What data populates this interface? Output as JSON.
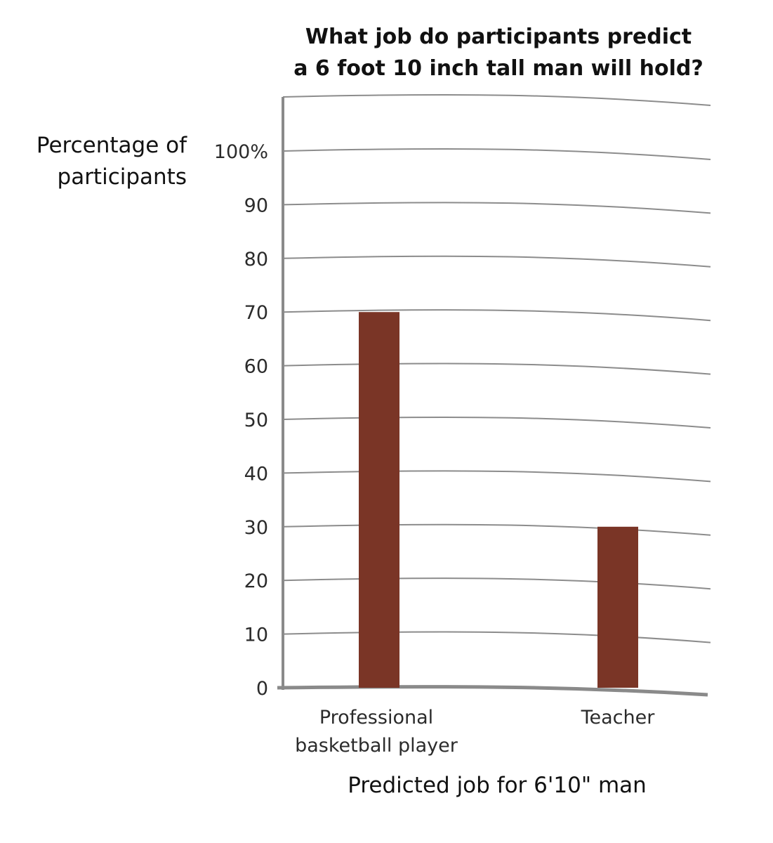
{
  "chart_data": {
    "type": "bar",
    "title": [
      "What job do participants predict",
      "a 6 foot 10 inch tall man will hold?"
    ],
    "ylabel": [
      "Percentage of",
      "participants"
    ],
    "xlabel": "Predicted job for 6'10\" man",
    "categories": [
      [
        "Professional",
        "basketball player"
      ],
      [
        "Teacher"
      ]
    ],
    "values": [
      70,
      30
    ],
    "ylim": [
      0,
      100
    ],
    "yticks": [
      0,
      10,
      20,
      30,
      40,
      50,
      60,
      70,
      80,
      90,
      100
    ],
    "ytick_labels": [
      "0",
      "10",
      "20",
      "30",
      "40",
      "50",
      "60",
      "70",
      "80",
      "90",
      "100%"
    ],
    "grid": true,
    "bar_color": "#7a3526",
    "grid_color": "#8c8c8c"
  }
}
